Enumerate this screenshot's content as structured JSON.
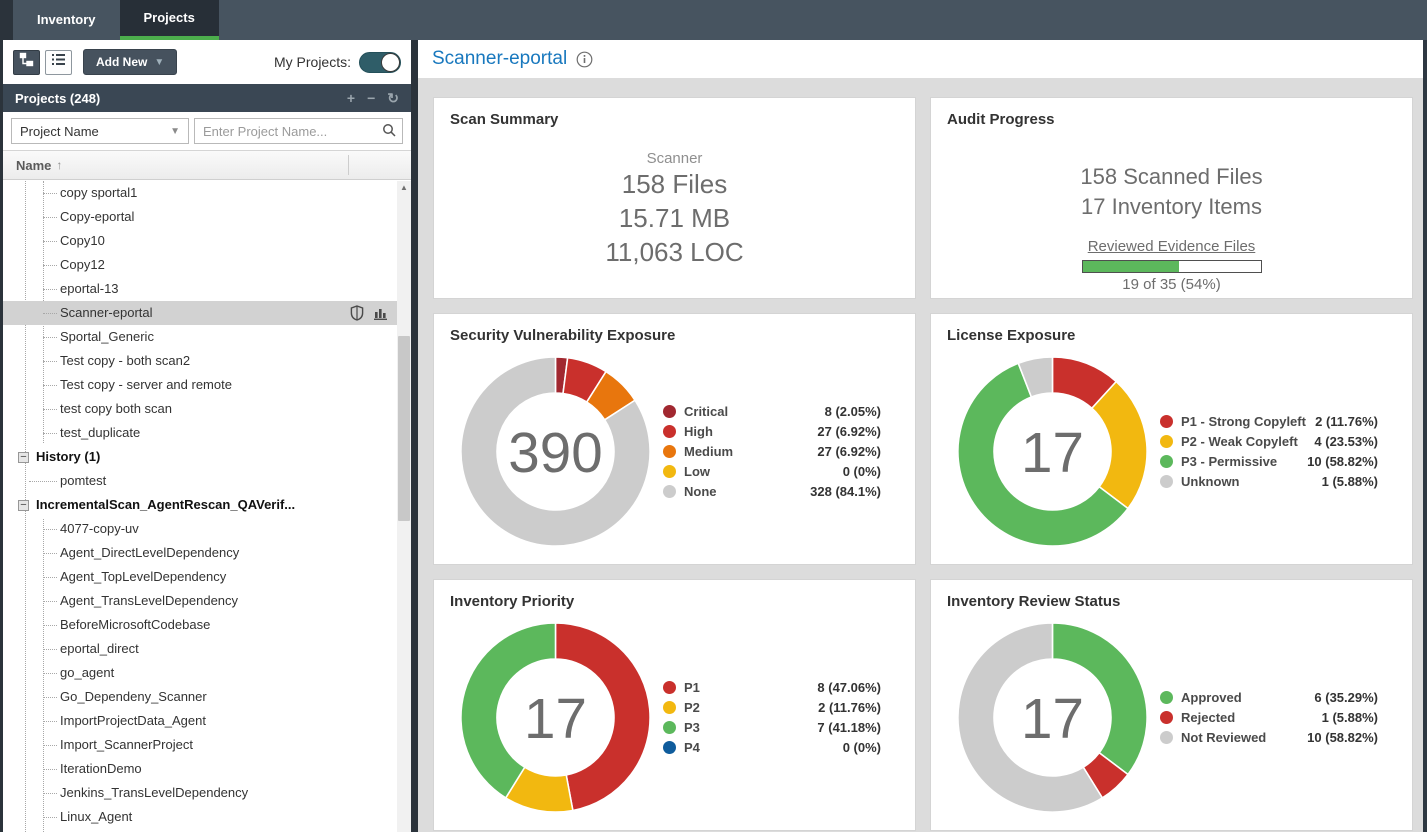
{
  "nav": {
    "tabs": [
      {
        "label": "Inventory",
        "active": false
      },
      {
        "label": "Projects",
        "active": true
      }
    ]
  },
  "sidebar": {
    "toolbar": {
      "add_new_label": "Add New",
      "my_projects_label": "My Projects:",
      "toggle_on": true
    },
    "header": {
      "title": "Projects (248)"
    },
    "filter": {
      "field_selector": "Project Name",
      "search_placeholder": "Enter Project Name..."
    },
    "columns": {
      "name": "Name"
    },
    "tree": [
      {
        "label": "copy sportal1",
        "level": 2
      },
      {
        "label": "Copy-eportal",
        "level": 2
      },
      {
        "label": "Copy10",
        "level": 2
      },
      {
        "label": "Copy12",
        "level": 2
      },
      {
        "label": "eportal-13",
        "level": 2
      },
      {
        "label": "Scanner-eportal",
        "level": 2,
        "selected": true,
        "icons": true
      },
      {
        "label": "Sportal_Generic",
        "level": 2
      },
      {
        "label": "Test copy - both scan2",
        "level": 2
      },
      {
        "label": "Test copy - server and remote",
        "level": 2
      },
      {
        "label": "test copy both scan",
        "level": 2
      },
      {
        "label": "test_duplicate",
        "level": 2
      },
      {
        "label": "History (1)",
        "level": 1,
        "bold": true,
        "expander": true
      },
      {
        "label": "pomtest",
        "level": 2,
        "stub_root": true
      },
      {
        "label": "IncrementalScan_AgentRescan_QAVerif...",
        "level": 1,
        "bold": true,
        "expander": true
      },
      {
        "label": "4077-copy-uv",
        "level": 2
      },
      {
        "label": "Agent_DirectLevelDependency",
        "level": 2
      },
      {
        "label": "Agent_TopLevelDependency",
        "level": 2
      },
      {
        "label": "Agent_TransLevelDependency",
        "level": 2
      },
      {
        "label": "BeforeMicrosoftCodebase",
        "level": 2
      },
      {
        "label": "eportal_direct",
        "level": 2
      },
      {
        "label": "go_agent",
        "level": 2
      },
      {
        "label": "Go_Dependeny_Scanner",
        "level": 2
      },
      {
        "label": "ImportProjectData_Agent",
        "level": 2
      },
      {
        "label": "Import_ScannerProject",
        "level": 2
      },
      {
        "label": "IterationDemo",
        "level": 2
      },
      {
        "label": "Jenkins_TransLevelDependency",
        "level": 2
      },
      {
        "label": "Linux_Agent",
        "level": 2
      }
    ]
  },
  "main": {
    "title": "Scanner-eportal",
    "scan_summary": {
      "title": "Scan Summary",
      "subtitle": "Scanner",
      "lines": [
        "158 Files",
        "15.71 MB",
        "11,063 LOC"
      ]
    },
    "audit_progress": {
      "title": "Audit Progress",
      "lines": [
        "158 Scanned Files",
        "17 Inventory Items"
      ],
      "bar_label": "Reviewed Evidence Files",
      "progress_pct": 54,
      "progress_text": "19 of 35 (54%)"
    }
  },
  "chart_data": [
    {
      "type": "donut",
      "title": "Security Vulnerability Exposure",
      "center_label": "390",
      "total": 390,
      "segments": [
        {
          "label": "Critical",
          "value": 8,
          "display": "8 (2.05%)",
          "pct": 2.05,
          "color": "#a12830"
        },
        {
          "label": "High",
          "value": 27,
          "display": "27 (6.92%)",
          "pct": 6.92,
          "color": "#c9302c"
        },
        {
          "label": "Medium",
          "value": 27,
          "display": "27 (6.92%)",
          "pct": 6.92,
          "color": "#e8760d"
        },
        {
          "label": "Low",
          "value": 0,
          "display": "0 (0%)",
          "pct": 0,
          "color": "#f2b810"
        },
        {
          "label": "None",
          "value": 328,
          "display": "328 (84.1%)",
          "pct": 84.11,
          "color": "#cccccc"
        }
      ]
    },
    {
      "type": "donut",
      "title": "License Exposure",
      "center_label": "17",
      "total": 17,
      "segments": [
        {
          "label": "P1 - Strong Copyleft",
          "value": 2,
          "display": "2 (11.76%)",
          "pct": 11.76,
          "color": "#c9302c"
        },
        {
          "label": "P2 - Weak Copyleft",
          "value": 4,
          "display": "4 (23.53%)",
          "pct": 23.53,
          "color": "#f2b810"
        },
        {
          "label": "P3 - Permissive",
          "value": 10,
          "display": "10 (58.82%)",
          "pct": 58.82,
          "color": "#5cb85c"
        },
        {
          "label": "Unknown",
          "value": 1,
          "display": "1 (5.88%)",
          "pct": 5.88,
          "color": "#cccccc"
        }
      ]
    },
    {
      "type": "donut",
      "title": "Inventory Priority",
      "center_label": "17",
      "total": 17,
      "segments": [
        {
          "label": "P1",
          "value": 8,
          "display": "8 (47.06%)",
          "pct": 47.06,
          "color": "#c9302c"
        },
        {
          "label": "P2",
          "value": 2,
          "display": "2 (11.76%)",
          "pct": 11.76,
          "color": "#f2b810"
        },
        {
          "label": "P3",
          "value": 7,
          "display": "7 (41.18%)",
          "pct": 41.18,
          "color": "#5cb85c"
        },
        {
          "label": "P4",
          "value": 0,
          "display": "0 (0%)",
          "pct": 0,
          "color": "#0f5c9c"
        }
      ]
    },
    {
      "type": "donut",
      "title": "Inventory Review Status",
      "center_label": "17",
      "total": 17,
      "segments": [
        {
          "label": "Approved",
          "value": 6,
          "display": "6 (35.29%)",
          "pct": 35.29,
          "color": "#5cb85c"
        },
        {
          "label": "Rejected",
          "value": 1,
          "display": "1 (5.88%)",
          "pct": 5.88,
          "color": "#c9302c"
        },
        {
          "label": "Not Reviewed",
          "value": 10,
          "display": "10 (58.82%)",
          "pct": 58.82,
          "color": "#cccccc"
        }
      ]
    }
  ],
  "colors": {
    "nav_bg": "#475460",
    "nav_active_bg": "#272f37",
    "accent_green": "#4cae4c",
    "header_blue": "#1878be",
    "panel_dark": "#3a4754",
    "progress_green": "#5cb85c",
    "content_bg": "#dcdcdc"
  }
}
